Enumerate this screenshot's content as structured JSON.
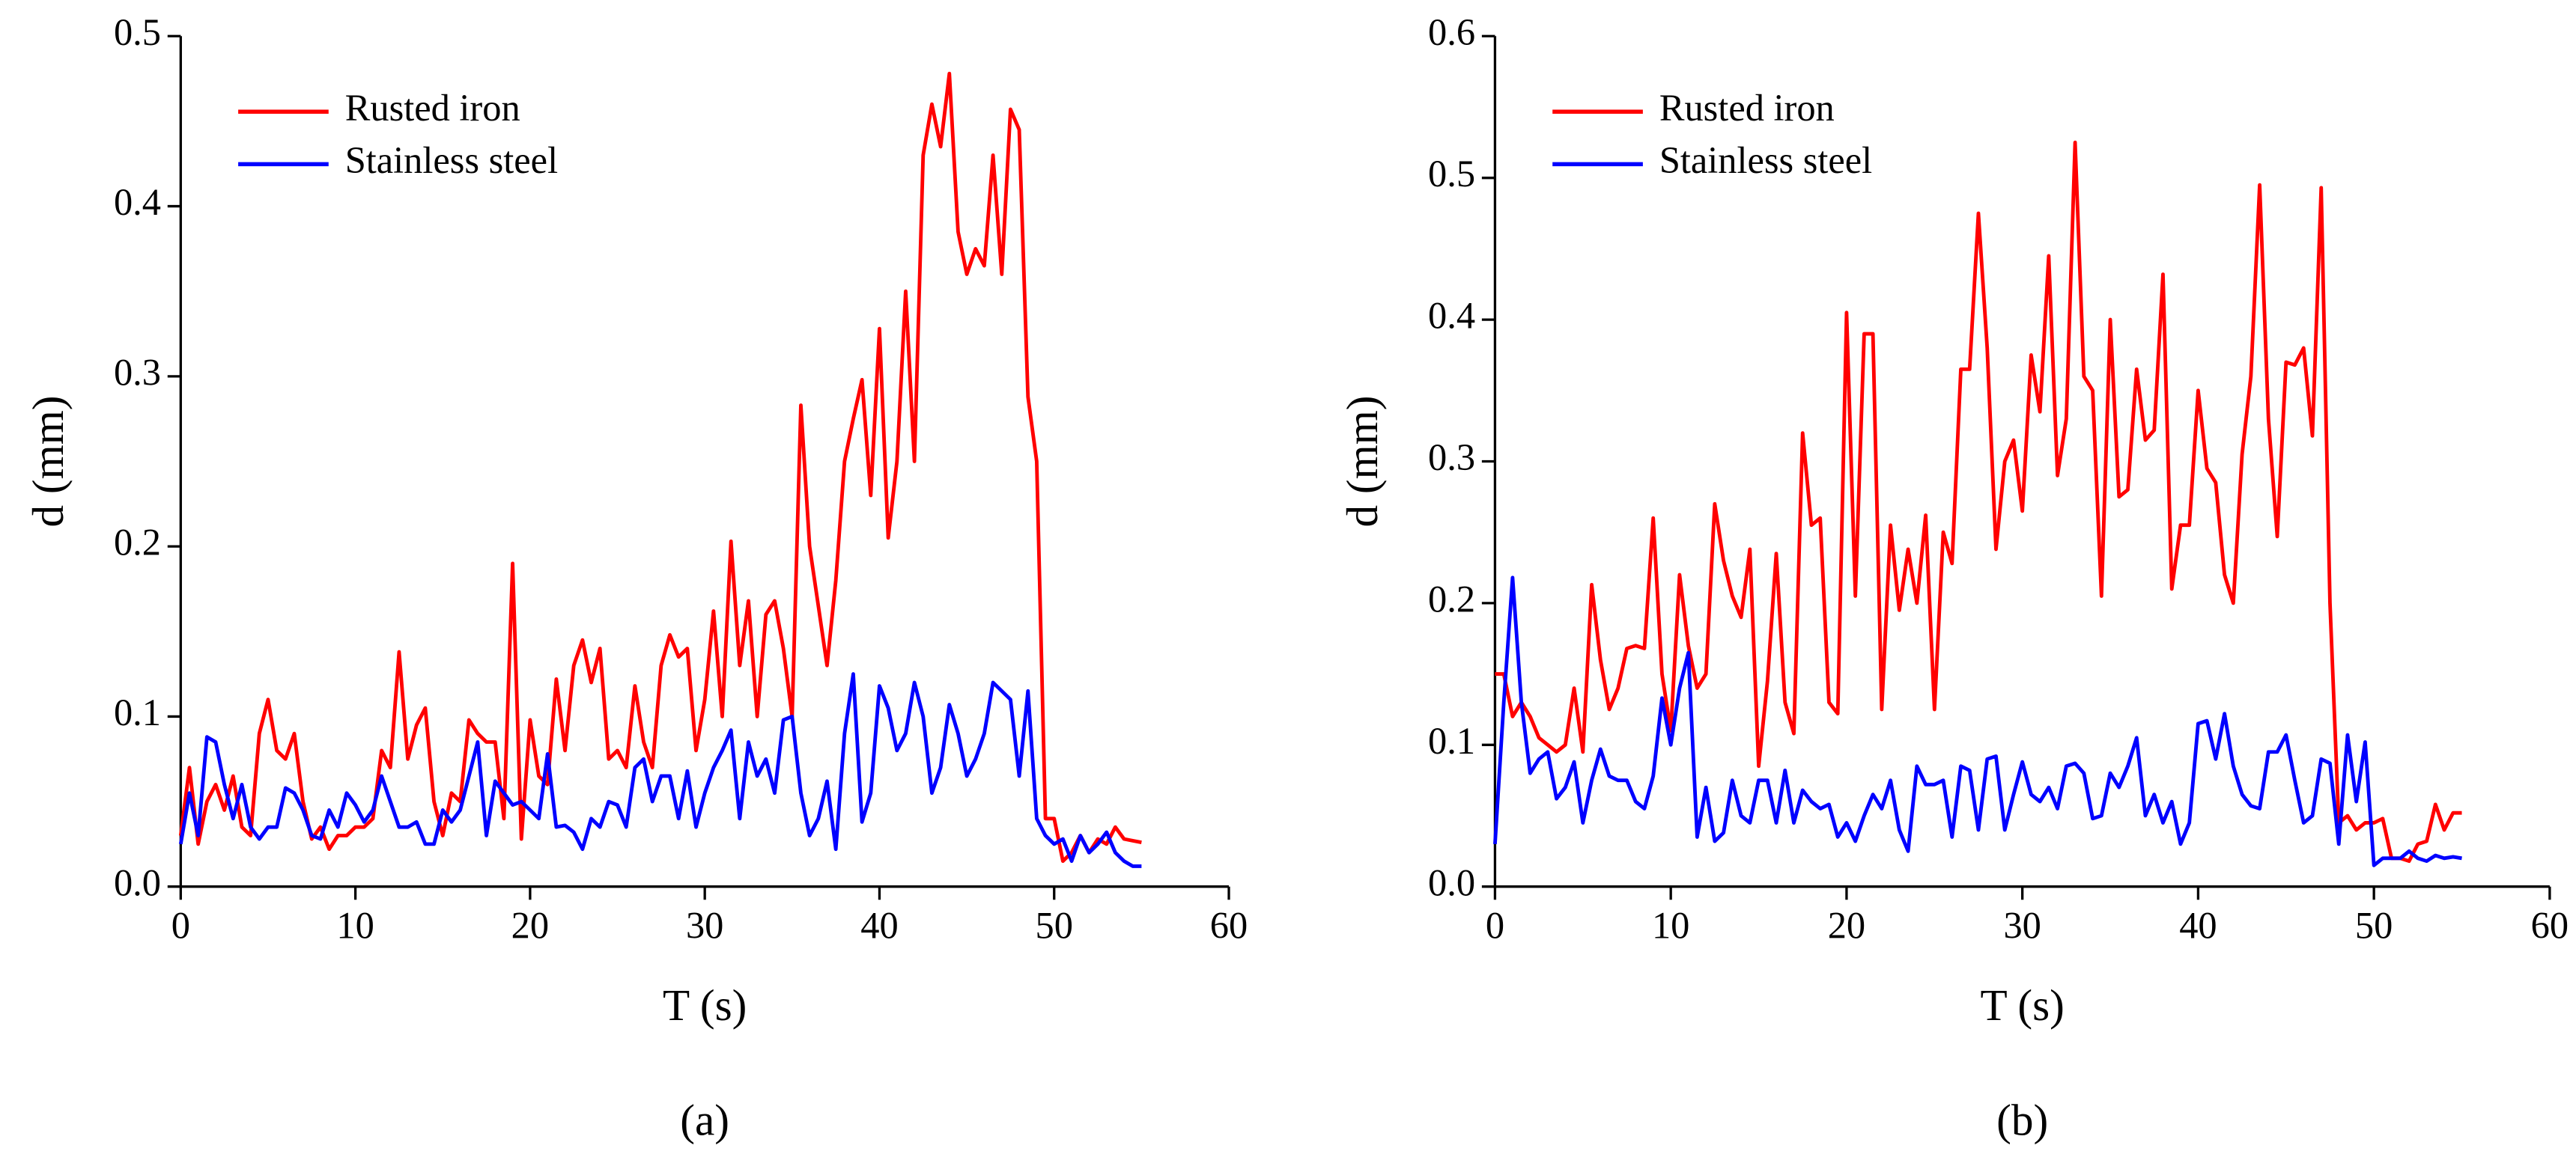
{
  "chart_data": [
    {
      "type": "line",
      "panel": "(a)",
      "xlabel": "T (s)",
      "ylabel": "d (mm)",
      "legend": "upper left",
      "xlim": [
        0,
        60
      ],
      "xticks": [
        0,
        10,
        20,
        30,
        40,
        50,
        60
      ],
      "ylim": [
        0,
        0.5
      ],
      "yticks": [
        {
          "value": 0,
          "label": "0.0"
        },
        0.1,
        0.2,
        0.3,
        0.4,
        0.5
      ],
      "x": [
        0,
        0.5,
        1,
        1.5,
        2,
        2.5,
        3,
        3.5,
        4,
        4.5,
        5,
        5.5,
        6,
        6.5,
        7,
        7.5,
        8,
        8.5,
        9,
        9.5,
        10,
        10.5,
        11,
        11.5,
        12,
        12.5,
        13,
        13.5,
        14,
        14.5,
        15,
        15.5,
        16,
        16.5,
        17,
        17.5,
        18,
        18.5,
        19,
        19.5,
        20,
        20.5,
        21,
        21.5,
        22,
        22.5,
        23,
        23.5,
        24,
        24.5,
        25,
        25.5,
        26,
        26.5,
        27,
        27.5,
        28,
        28.5,
        29,
        29.5,
        30,
        30.5,
        31,
        31.5,
        32,
        32.5,
        33,
        33.5,
        34,
        34.5,
        35,
        35.5,
        36,
        36.5,
        37,
        37.5,
        38,
        38.5,
        39,
        39.5,
        40,
        40.5,
        41,
        41.5,
        42,
        42.5,
        43,
        43.5,
        44,
        44.5,
        45,
        45.5,
        46,
        46.5,
        47,
        47.5,
        48,
        48.5,
        49,
        49.5,
        50,
        50.5,
        51,
        51.5,
        52,
        52.5,
        53,
        53.5,
        54,
        54.5,
        55
      ],
      "series": [
        {
          "name": "Rusted iron",
          "color": "#ff0000",
          "values": [
            0.03,
            0.07,
            0.025,
            0.05,
            0.06,
            0.045,
            0.065,
            0.035,
            0.03,
            0.09,
            0.11,
            0.08,
            0.075,
            0.09,
            0.05,
            0.028,
            0.035,
            0.022,
            0.03,
            0.03,
            0.035,
            0.035,
            0.04,
            0.08,
            0.07,
            0.138,
            0.075,
            0.095,
            0.105,
            0.05,
            0.03,
            0.055,
            0.05,
            0.098,
            0.09,
            0.085,
            0.085,
            0.04,
            0.19,
            0.028,
            0.098,
            0.065,
            0.06,
            0.122,
            0.08,
            0.13,
            0.145,
            0.12,
            0.14,
            0.075,
            0.08,
            0.07,
            0.118,
            0.085,
            0.07,
            0.13,
            0.148,
            0.135,
            0.14,
            0.08,
            0.11,
            0.162,
            0.1,
            0.203,
            0.13,
            0.168,
            0.1,
            0.16,
            0.168,
            0.14,
            0.1,
            0.283,
            0.2,
            0.165,
            0.13,
            0.18,
            0.25,
            0.275,
            0.298,
            0.23,
            0.328,
            0.205,
            0.25,
            0.35,
            0.25,
            0.43,
            0.46,
            0.435,
            0.478,
            0.385,
            0.36,
            0.375,
            0.365,
            0.43,
            0.36,
            0.457,
            0.445,
            0.288,
            0.25,
            0.04,
            0.04,
            0.015,
            0.02,
            0.03,
            0.02,
            0.028,
            0.025,
            0.035,
            0.028,
            0.027,
            0.026
          ]
        },
        {
          "name": "Stainless steel",
          "color": "#0000ff",
          "values": [
            0.025,
            0.055,
            0.03,
            0.088,
            0.085,
            0.06,
            0.04,
            0.06,
            0.035,
            0.028,
            0.035,
            0.035,
            0.058,
            0.055,
            0.045,
            0.03,
            0.028,
            0.045,
            0.035,
            0.055,
            0.048,
            0.038,
            0.045,
            0.065,
            0.05,
            0.035,
            0.035,
            0.038,
            0.025,
            0.025,
            0.045,
            0.038,
            0.045,
            0.065,
            0.085,
            0.03,
            0.062,
            0.055,
            0.048,
            0.05,
            0.045,
            0.04,
            0.078,
            0.035,
            0.036,
            0.032,
            0.022,
            0.04,
            0.035,
            0.05,
            0.048,
            0.035,
            0.07,
            0.075,
            0.05,
            0.065,
            0.065,
            0.04,
            0.068,
            0.035,
            0.055,
            0.07,
            0.08,
            0.092,
            0.04,
            0.085,
            0.065,
            0.075,
            0.055,
            0.098,
            0.1,
            0.055,
            0.03,
            0.04,
            0.062,
            0.022,
            0.09,
            0.125,
            0.038,
            0.055,
            0.118,
            0.105,
            0.08,
            0.09,
            0.12,
            0.1,
            0.055,
            0.07,
            0.107,
            0.09,
            0.065,
            0.075,
            0.09,
            0.12,
            0.115,
            0.11,
            0.065,
            0.115,
            0.04,
            0.03,
            0.025,
            0.028,
            0.015,
            0.03,
            0.02,
            0.025,
            0.032,
            0.02,
            0.015,
            0.012,
            0.012
          ]
        }
      ]
    },
    {
      "type": "line",
      "panel": "(b)",
      "xlabel": "T (s)",
      "ylabel": "d (mm)",
      "legend": "upper left",
      "xlim": [
        0,
        60
      ],
      "xticks": [
        0,
        10,
        20,
        30,
        40,
        50,
        60
      ],
      "ylim": [
        0,
        0.6
      ],
      "yticks": [
        {
          "value": 0,
          "label": "0.0"
        },
        0.1,
        0.2,
        0.3,
        0.4,
        0.5,
        0.6
      ],
      "x": [
        0,
        0.5,
        1,
        1.5,
        2,
        2.5,
        3,
        3.5,
        4,
        4.5,
        5,
        5.5,
        6,
        6.5,
        7,
        7.5,
        8,
        8.5,
        9,
        9.5,
        10,
        10.5,
        11,
        11.5,
        12,
        12.5,
        13,
        13.5,
        14,
        14.5,
        15,
        15.5,
        16,
        16.5,
        17,
        17.5,
        18,
        18.5,
        19,
        19.5,
        20,
        20.5,
        21,
        21.5,
        22,
        22.5,
        23,
        23.5,
        24,
        24.5,
        25,
        25.5,
        26,
        26.5,
        27,
        27.5,
        28,
        28.5,
        29,
        29.5,
        30,
        30.5,
        31,
        31.5,
        32,
        32.5,
        33,
        33.5,
        34,
        34.5,
        35,
        35.5,
        36,
        36.5,
        37,
        37.5,
        38,
        38.5,
        39,
        39.5,
        40,
        40.5,
        41,
        41.5,
        42,
        42.5,
        43,
        43.5,
        44,
        44.5,
        45,
        45.5,
        46,
        46.5,
        47,
        47.5,
        48,
        48.5,
        49,
        49.5,
        50,
        50.5,
        51,
        51.5,
        52,
        52.5,
        53,
        53.5,
        54,
        54.5,
        55
      ],
      "series": [
        {
          "name": "Rusted iron",
          "color": "#ff0000",
          "values": [
            0.15,
            0.15,
            0.12,
            0.13,
            0.12,
            0.105,
            0.1,
            0.095,
            0.1,
            0.14,
            0.095,
            0.213,
            0.16,
            0.125,
            0.14,
            0.168,
            0.17,
            0.168,
            0.26,
            0.15,
            0.11,
            0.22,
            0.17,
            0.14,
            0.15,
            0.27,
            0.23,
            0.205,
            0.19,
            0.238,
            0.085,
            0.145,
            0.235,
            0.13,
            0.108,
            0.32,
            0.255,
            0.26,
            0.13,
            0.122,
            0.405,
            0.205,
            0.39,
            0.39,
            0.125,
            0.255,
            0.195,
            0.238,
            0.2,
            0.262,
            0.125,
            0.25,
            0.228,
            0.365,
            0.365,
            0.475,
            0.38,
            0.238,
            0.3,
            0.315,
            0.265,
            0.375,
            0.335,
            0.445,
            0.29,
            0.33,
            0.525,
            0.36,
            0.35,
            0.205,
            0.4,
            0.275,
            0.28,
            0.365,
            0.315,
            0.322,
            0.432,
            0.21,
            0.255,
            0.255,
            0.35,
            0.295,
            0.285,
            0.22,
            0.2,
            0.305,
            0.36,
            0.495,
            0.33,
            0.247,
            0.37,
            0.368,
            0.38,
            0.318,
            0.493,
            0.2,
            0.045,
            0.05,
            0.04,
            0.045,
            0.045,
            0.048,
            0.02,
            0.02,
            0.018,
            0.03,
            0.032,
            0.058,
            0.04,
            0.052,
            0.052
          ]
        },
        {
          "name": "Stainless steel",
          "color": "#0000ff",
          "values": [
            0.03,
            0.13,
            0.218,
            0.13,
            0.08,
            0.09,
            0.095,
            0.062,
            0.07,
            0.088,
            0.045,
            0.075,
            0.097,
            0.078,
            0.075,
            0.075,
            0.06,
            0.055,
            0.078,
            0.133,
            0.1,
            0.14,
            0.165,
            0.035,
            0.07,
            0.032,
            0.038,
            0.075,
            0.05,
            0.045,
            0.075,
            0.075,
            0.045,
            0.082,
            0.045,
            0.068,
            0.06,
            0.055,
            0.058,
            0.035,
            0.045,
            0.032,
            0.05,
            0.065,
            0.055,
            0.075,
            0.04,
            0.025,
            0.085,
            0.072,
            0.072,
            0.075,
            0.035,
            0.085,
            0.082,
            0.04,
            0.09,
            0.092,
            0.04,
            0.065,
            0.088,
            0.065,
            0.06,
            0.07,
            0.055,
            0.085,
            0.087,
            0.08,
            0.048,
            0.05,
            0.08,
            0.07,
            0.085,
            0.105,
            0.05,
            0.065,
            0.045,
            0.06,
            0.03,
            0.045,
            0.115,
            0.117,
            0.09,
            0.122,
            0.085,
            0.065,
            0.057,
            0.055,
            0.095,
            0.095,
            0.107,
            0.075,
            0.045,
            0.05,
            0.09,
            0.087,
            0.03,
            0.107,
            0.06,
            0.102,
            0.015,
            0.02,
            0.02,
            0.02,
            0.025,
            0.02,
            0.018,
            0.022,
            0.02,
            0.021,
            0.02
          ]
        }
      ]
    }
  ]
}
